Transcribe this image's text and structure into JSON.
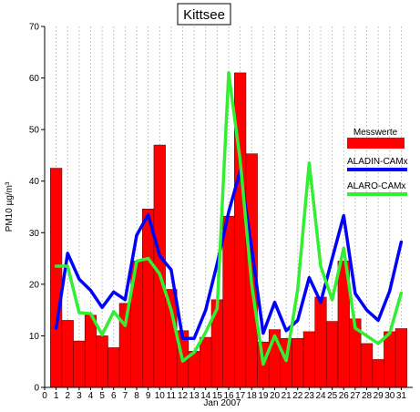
{
  "chart_data": {
    "type": "bar+line",
    "title": "Kittsee",
    "xlabel": "Jan 2007",
    "ylabel": "PM10 µg/m³",
    "xlim": [
      0,
      31
    ],
    "ylim": [
      0,
      70
    ],
    "x_ticks": [
      0,
      1,
      2,
      3,
      4,
      5,
      6,
      7,
      8,
      9,
      10,
      11,
      12,
      13,
      14,
      15,
      16,
      17,
      18,
      19,
      20,
      21,
      22,
      23,
      24,
      25,
      26,
      27,
      28,
      29,
      30,
      31
    ],
    "y_ticks": [
      0,
      10,
      20,
      30,
      40,
      50,
      60,
      70
    ],
    "grid": "vertical dashed",
    "legend_position": "right",
    "bars": {
      "name": "Messwerte",
      "color": "#ff0000",
      "categories": [
        1,
        2,
        3,
        4,
        5,
        6,
        7,
        8,
        9,
        10,
        11,
        12,
        13,
        14,
        15,
        16,
        17,
        18,
        19,
        20,
        21,
        22,
        23,
        24,
        25,
        26,
        27,
        28,
        29,
        30,
        31
      ],
      "values": [
        42.5,
        13,
        9,
        14,
        10,
        7.7,
        16.3,
        24.5,
        34.6,
        47,
        19,
        11,
        7,
        9.7,
        17,
        33.2,
        61,
        45.3,
        8.8,
        11.2,
        9.5,
        9.5,
        10.8,
        17.5,
        12.8,
        24.5,
        13.3,
        8.5,
        5.4,
        10.8,
        11.4
      ]
    },
    "series": [
      {
        "name": "ALADIN-CAMx",
        "color": "#0000ff",
        "x": [
          1,
          2,
          3,
          4,
          5,
          6,
          7,
          8,
          9,
          10,
          11,
          12,
          13,
          14,
          15,
          16,
          17,
          18,
          19,
          20,
          21,
          22,
          23,
          24,
          25,
          26,
          27,
          28,
          29,
          30,
          31
        ],
        "values": [
          11.5,
          26,
          21,
          18.8,
          15.5,
          18.5,
          17,
          29.5,
          33.5,
          25.5,
          22.8,
          9.5,
          9.5,
          15,
          24,
          34,
          42,
          27,
          10.5,
          16.5,
          11,
          13,
          21.3,
          16.5,
          25,
          33.3,
          18.2,
          15,
          13,
          18.7,
          28.2
        ]
      },
      {
        "name": "ALARO-CAMx",
        "color": "#33ee33",
        "x": [
          1,
          2,
          3,
          4,
          5,
          6,
          7,
          8,
          9,
          10,
          11,
          12,
          13,
          14,
          15,
          16,
          17,
          18,
          19,
          20,
          21,
          22,
          23,
          24,
          25,
          26,
          27,
          28,
          29,
          30,
          31
        ],
        "values": [
          23.5,
          23.5,
          14.5,
          14.3,
          10.2,
          14.7,
          12,
          24.5,
          25,
          22,
          15,
          5.1,
          6.8,
          10.7,
          15.3,
          61,
          44,
          20,
          4.5,
          10,
          5.2,
          19,
          43.5,
          23.5,
          17,
          27,
          11.5,
          10,
          8.5,
          10.5,
          18.3
        ]
      }
    ]
  }
}
